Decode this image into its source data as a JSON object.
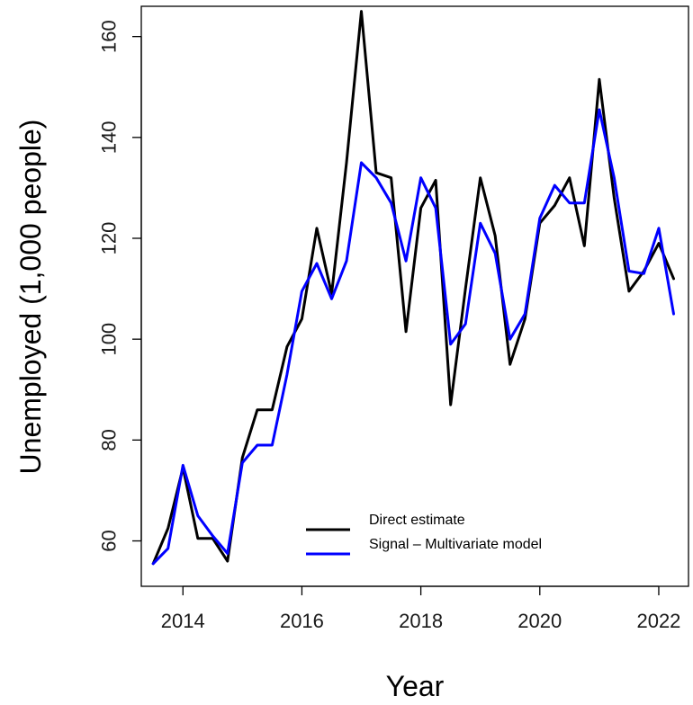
{
  "chart_data": {
    "type": "line",
    "title": "",
    "xlabel": "Year",
    "ylabel": "Unemployed (1,000 people)",
    "xlim": [
      2013.3,
      2022.5
    ],
    "ylim": [
      51,
      166
    ],
    "x_ticks": [
      2014,
      2016,
      2018,
      2020,
      2022
    ],
    "y_ticks": [
      60,
      80,
      100,
      120,
      140,
      160
    ],
    "grid": false,
    "legend_position": "bottom-right",
    "x": [
      2013.5,
      2013.75,
      2014.0,
      2014.25,
      2014.5,
      2014.75,
      2015.0,
      2015.25,
      2015.5,
      2015.75,
      2016.0,
      2016.25,
      2016.5,
      2016.75,
      2017.0,
      2017.25,
      2017.5,
      2017.75,
      2018.0,
      2018.25,
      2018.5,
      2018.75,
      2019.0,
      2019.25,
      2019.5,
      2019.75,
      2020.0,
      2020.25,
      2020.5,
      2020.75,
      2021.0,
      2021.25,
      2021.5,
      2021.75,
      2022.0,
      2022.25
    ],
    "series": [
      {
        "name": "Direct estimate",
        "color": "#000000",
        "values": [
          55.5,
          62.5,
          74.5,
          60.5,
          60.5,
          56,
          76.5,
          86,
          86,
          98.5,
          104,
          122,
          109,
          135,
          165,
          133,
          132,
          101.5,
          126,
          131.5,
          87,
          110,
          132,
          120.5,
          95,
          104,
          123,
          126.5,
          132,
          118.5,
          151.5,
          128,
          109.5,
          113.5,
          119,
          112
        ]
      },
      {
        "name": "Signal – Multivariate model",
        "color": "#0000ff",
        "values": [
          55.5,
          58.5,
          75,
          65,
          61,
          57.5,
          75.5,
          79,
          79,
          93,
          109.5,
          115,
          108,
          115.5,
          135,
          132,
          127,
          115.5,
          132,
          126,
          99,
          103,
          123,
          117,
          100,
          105,
          124,
          130.5,
          127,
          127,
          145.5,
          132,
          113.5,
          113,
          122,
          105
        ]
      }
    ]
  }
}
